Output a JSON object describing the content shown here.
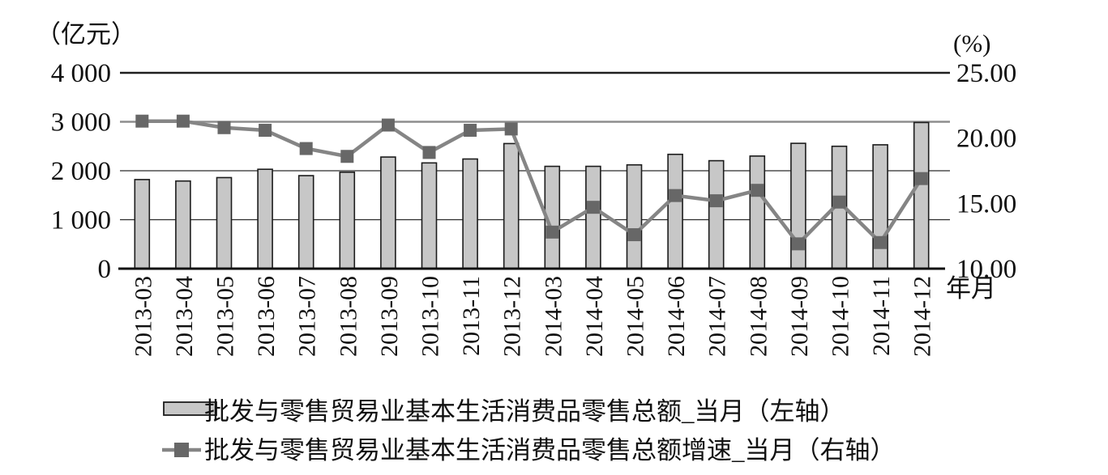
{
  "chart_data": {
    "type": "bar-line-combo",
    "title": "",
    "x_axis_label": "年月",
    "grid": "horizontal",
    "legend_position": "bottom",
    "left_axis": {
      "unit_label": "（亿元）",
      "min": 0,
      "max": 4000,
      "tick_values": [
        0,
        1000,
        2000,
        3000,
        4000
      ],
      "ticks": [
        "0",
        "1 000",
        "2 000",
        "3 000",
        "4 000"
      ]
    },
    "right_axis": {
      "unit_label": "(%)",
      "min": 10,
      "max": 25,
      "tick_values": [
        10,
        15,
        20,
        25
      ],
      "ticks": [
        "10.00",
        "15.00",
        "20.00",
        "25.00"
      ]
    },
    "categories": [
      "2013-03",
      "2013-04",
      "2013-05",
      "2013-06",
      "2013-07",
      "2013-08",
      "2013-09",
      "2013-10",
      "2013-11",
      "2013-12",
      "2014-03",
      "2014-04",
      "2014-05",
      "2014-06",
      "2014-07",
      "2014-08",
      "2014-09",
      "2014-10",
      "2014-11",
      "2014-12"
    ],
    "series": [
      {
        "name": "批发与零售贸易业基本生活消费品零售总额_当月（左轴）",
        "type": "bar",
        "axis": "left",
        "values": [
          1820,
          1790,
          1860,
          2030,
          1900,
          1970,
          2280,
          2160,
          2240,
          2555,
          2090,
          2090,
          2120,
          2335,
          2205,
          2300,
          2560,
          2500,
          2530,
          2985
        ]
      },
      {
        "name": "批发与零售贸易业基本生活消费品零售总额增速_当月（右轴）",
        "type": "line",
        "axis": "right",
        "marker": "square",
        "values": [
          21.3,
          21.3,
          20.8,
          20.6,
          19.2,
          18.6,
          21.0,
          18.9,
          20.6,
          20.7,
          12.8,
          14.7,
          12.6,
          15.6,
          15.2,
          16.0,
          11.9,
          15.1,
          12.0,
          16.9
        ]
      }
    ],
    "colors": {
      "background": "#ffffff",
      "bar_fill": "#c7c7c7",
      "bar_border": "#1c1c1c",
      "line": "#858585",
      "marker": "#676767",
      "grid_dark": "#1f1f1f",
      "grid_gray": "#8e8e8e",
      "grid_thin": "#2b2b2b",
      "axis": "#111111",
      "text": "#111111"
    }
  }
}
